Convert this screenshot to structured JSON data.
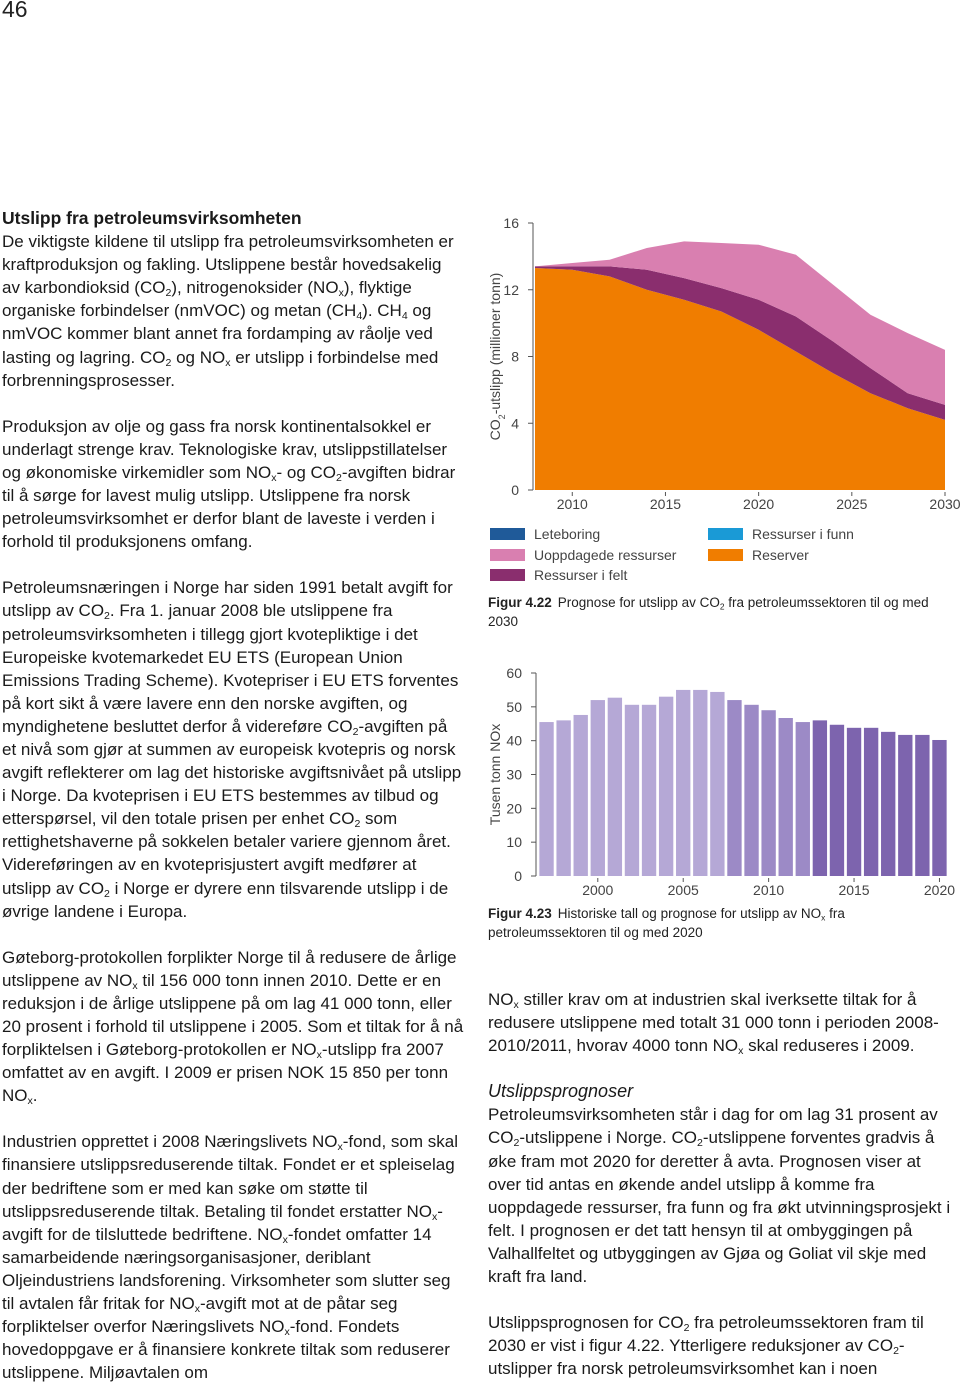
{
  "page_number": "46",
  "left_column": {
    "heading": "Utslipp fra petroleumsvirksomheten",
    "paragraphs": [
      [
        "De viktigste kildene til utslipp fra petroleumsvirksomheten er kraftproduksjon og fakling. Utslippene består hovedsakelig av karbondioksid (CO",
        {
          "sub": "2"
        },
        "), nitrogenoksider (NO",
        {
          "sub": "x"
        },
        "), flyktige organiske forbindelser (nmVOC) og metan (CH",
        {
          "sub": "4"
        },
        "). CH",
        {
          "sub": "4"
        },
        " og nmVOC kommer blant annet fra fordamping av råolje ved lasting og lagring. CO",
        {
          "sub": "2"
        },
        " og NO",
        {
          "sub": "x"
        },
        " er utslipp i forbindelse med forbrenningsprosesser."
      ],
      [
        "Produksjon av olje og gass fra norsk kontinentalsokkel er underlagt strenge krav. Teknologiske krav, utslippstillatelser og økonomiske virkemidler som NO",
        {
          "sub": "x"
        },
        "- og CO",
        {
          "sub": "2"
        },
        "-avgiften bidrar til å sørge for lavest mulig utslipp. Utslippene fra norsk petroleumsvirksomhet er derfor blant de laveste i verden i forhold til produksjonens omfang."
      ],
      [
        "Petroleumsnæringen i Norge har siden 1991 betalt avgift for utslipp av CO",
        {
          "sub": "2"
        },
        ". Fra 1. januar 2008 ble utslippene fra petroleumsvirksomheten i tillegg gjort kvotepliktige i det Europeiske kvotemarkedet EU ETS (European Union Emissions Trading Scheme). Kvotepriser i EU ETS forventes på kort sikt å være lavere enn den norske avgiften, og myndighetene besluttet derfor å videreføre CO",
        {
          "sub": "2"
        },
        "-avgiften på et nivå som gjør at summen av europeisk kvotepris og norsk avgift reflekterer om lag det historiske avgiftsnivået på utslipp i Norge. Da kvoteprisen i EU ETS bestemmes av tilbud og etterspørsel, vil den totale prisen per enhet CO",
        {
          "sub": "2"
        },
        " som rettighetshaverne på sokkelen betaler variere gjennom året. Videreføringen av en kvoteprisjustert avgift medfører at utslipp av CO",
        {
          "sub": "2"
        },
        " i Norge er dyrere enn tilsvarende utslipp i de øvrige landene i Europa."
      ],
      [
        "Gøteborg-protokollen forplikter Norge til å redusere de årlige utslippene av NO",
        {
          "sub": "x"
        },
        " til 156 000 tonn innen 2010. Dette er en reduksjon i de årlige utslippene på om lag 41 000 tonn, eller 20 prosent i forhold til utslippene i 2005. Som et tiltak for å nå forpliktelsen i Gøteborg-protokollen er NO",
        {
          "sub": "x"
        },
        "-utslipp fra 2007 omfattet av en avgift. I 2009 er prisen NOK 15 850 per tonn NO",
        {
          "sub": "x"
        },
        "."
      ],
      [
        "Industrien opprettet i 2008 Næringslivets NO",
        {
          "sub": "x"
        },
        "-fond, som skal finansiere utslippsreduserende tiltak. Fondet er et spleiselag der bedriftene som er med kan søke om støtte til utslippsreduserende tiltak. Betaling til fondet erstatter NO",
        {
          "sub": "x"
        },
        "-avgift for de tilsluttede bedriftene. NO",
        {
          "sub": "x"
        },
        "-fondet omfatter 14 samarbeidende næringsorganisasjoner, deriblant Oljeindustriens landsforening. Virksomheter som slutter seg til avtalen får fritak for NO",
        {
          "sub": "x"
        },
        "-avgift mot at de påtar seg forpliktelser overfor Næringslivets NO",
        {
          "sub": "x"
        },
        "-fond. Fondets hovedoppgave er å finansiere konkrete tiltak som reduserer utslippene. Miljøavtalen om"
      ]
    ]
  },
  "right_column": {
    "intro": [
      "NO",
      {
        "sub": "x"
      },
      " stiller krav om at industrien skal iverksette tiltak for å redusere utslippene med totalt 31 000 tonn i perioden 2008-2010/2011, hvorav 4000 tonn NO",
      {
        "sub": "x"
      },
      " skal reduseres i 2009."
    ],
    "heading": "Utslippsprognoser",
    "paragraphs": [
      [
        "Petroleumsvirksomheten står i dag for om lag 31 prosent av CO",
        {
          "sub": "2"
        },
        "-utslippene i Norge. CO",
        {
          "sub": "2"
        },
        "-utslippene forventes gradvis å øke fram mot 2020 for deretter å avta. Prognosen viser at over tid antas en økende andel utslipp å komme fra uoppdagede ressurser, fra funn og fra økt utvinningsprosjekt i felt. I prognosen er det tatt hensyn til at ombyggingen på Valhallfeltet og utbyggingen av Gjøa og Goliat vil skje med kraft fra land."
      ],
      [
        "Utslippsprognosen for CO",
        {
          "sub": "2"
        },
        " fra petroleumssektoren fram til 2030 er vist i figur 4.22. Ytterligere reduksjoner av CO",
        {
          "sub": "2"
        },
        "-utslipper fra norsk petroleumsvirksomhet kan i noen"
      ]
    ]
  },
  "chart_data": [
    {
      "type": "area",
      "stacked": true,
      "y_label": [
        "CO",
        {
          "sub": "2"
        },
        "-utslipp (millioner tonn)"
      ],
      "x": [
        2008,
        2010,
        2012,
        2014,
        2016,
        2018,
        2020,
        2022,
        2024,
        2026,
        2028,
        2030
      ],
      "xlim": [
        2008,
        2030
      ],
      "xticks": [
        2010,
        2015,
        2020,
        2025,
        2030
      ],
      "ylim": [
        0,
        16
      ],
      "yticks": [
        0,
        4,
        8,
        12,
        16
      ],
      "series": [
        {
          "name": "Reserver",
          "color": "#f07d00",
          "values": [
            13.3,
            13.2,
            12.8,
            12.0,
            11.4,
            10.7,
            9.6,
            8.3,
            7.0,
            5.8,
            4.9,
            4.2
          ]
        },
        {
          "name": "Ressurser i felt",
          "color": "#8a2e6e",
          "values": [
            0.1,
            0.2,
            0.6,
            1.2,
            1.3,
            1.4,
            1.8,
            2.1,
            1.9,
            1.5,
            0.9,
            0.9
          ]
        },
        {
          "name": "Uoppdagede ressurser",
          "color": "#d97fb0",
          "values": [
            0,
            0.2,
            0.4,
            1.3,
            2.2,
            2.7,
            3.3,
            3.7,
            3.4,
            3.2,
            3.6,
            3.3
          ]
        },
        {
          "name": "Leteboring",
          "color": "#1f5a99",
          "values": [
            0,
            0,
            0,
            0,
            0,
            0,
            0,
            0,
            0,
            0,
            0,
            0
          ]
        },
        {
          "name": "Ressurser i funn",
          "color": "#1a9ad6",
          "values": [
            0,
            0,
            0,
            0,
            0,
            0,
            0,
            0,
            0,
            0,
            0,
            0
          ]
        }
      ],
      "caption": {
        "label": "Figur 4.22",
        "text": [
          "Prognose for utslipp av CO",
          {
            "sub": "2"
          },
          " fra petroleumssektoren  til og med 2030"
        ]
      }
    },
    {
      "type": "bar",
      "y_label": "Tusen tonn NOx",
      "x": [
        1997,
        1998,
        1999,
        2000,
        2001,
        2002,
        2003,
        2004,
        2005,
        2006,
        2007,
        2008,
        2009,
        2010,
        2011,
        2012,
        2013,
        2014,
        2015,
        2016,
        2017,
        2018,
        2019,
        2020
      ],
      "values": [
        45.5,
        46,
        47.6,
        52,
        52.7,
        50.6,
        50.6,
        53,
        55,
        55,
        54.4,
        52,
        50.6,
        49,
        46.7,
        45.5,
        46,
        44.7,
        43.8,
        43.8,
        42.6,
        41.7,
        41.7,
        40.2
      ],
      "colors": [
        "#b5a8d6",
        "#b5a8d6",
        "#b5a8d6",
        "#b5a8d6",
        "#b5a8d6",
        "#b5a8d6",
        "#b5a8d6",
        "#b5a8d6",
        "#b5a8d6",
        "#b5a8d6",
        "#b5a8d6",
        "#9c8ac6",
        "#9c8ac6",
        "#9c8ac6",
        "#9c8ac6",
        "#9c8ac6",
        "#7d64ae",
        "#7d64ae",
        "#7d64ae",
        "#7d64ae",
        "#7d64ae",
        "#7d64ae",
        "#7d64ae",
        "#7d64ae"
      ],
      "xlim": [
        1996.5,
        2020.5
      ],
      "xticks": [
        2000,
        2005,
        2010,
        2015,
        2020
      ],
      "ylim": [
        0,
        60
      ],
      "yticks": [
        0,
        10,
        20,
        30,
        40,
        50,
        60
      ],
      "caption": {
        "label": "Figur 4.23",
        "text": [
          "Historiske tall og prognose for utslipp av NO",
          {
            "sub": "x"
          },
          " fra petroleumssektoren til og med 2020"
        ]
      }
    }
  ]
}
